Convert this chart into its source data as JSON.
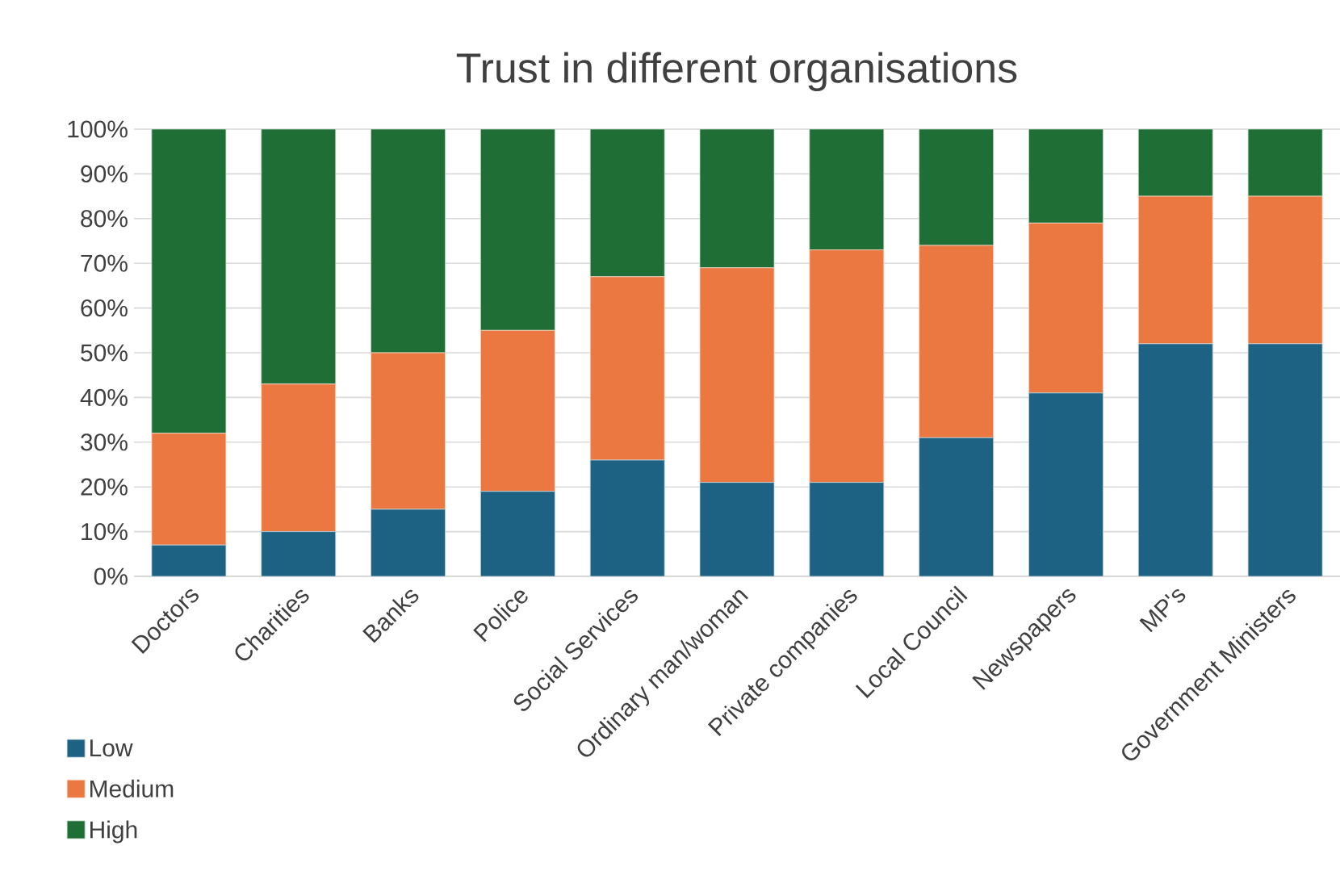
{
  "chart_data": {
    "type": "bar",
    "stacked": true,
    "title": "Trust in different organisations",
    "categories": [
      "Doctors",
      "Charities",
      "Banks",
      "Police",
      "Social Services",
      "Ordinary man/woman",
      "Private companies",
      "Local Council",
      "Newspapers",
      "MP's",
      "Government Ministers"
    ],
    "series": [
      {
        "name": "Low",
        "color": "#1d6282",
        "values": [
          7,
          10,
          15,
          19,
          26,
          21,
          21,
          31,
          41,
          52,
          52
        ]
      },
      {
        "name": "Medium",
        "color": "#eb7840",
        "values": [
          25,
          33,
          35,
          36,
          41,
          48,
          52,
          43,
          38,
          33,
          33
        ]
      },
      {
        "name": "High",
        "color": "#1e6e36",
        "values": [
          68,
          57,
          50,
          45,
          33,
          31,
          27,
          26,
          21,
          15,
          15
        ]
      }
    ],
    "ylim": [
      0,
      100
    ],
    "yticks": [
      {
        "value": 0,
        "label": "0%"
      },
      {
        "value": 10,
        "label": "10%"
      },
      {
        "value": 20,
        "label": "20%"
      },
      {
        "value": 30,
        "label": "30%"
      },
      {
        "value": 40,
        "label": "40%"
      },
      {
        "value": 50,
        "label": "50%"
      },
      {
        "value": 60,
        "label": "60%"
      },
      {
        "value": 70,
        "label": "70%"
      },
      {
        "value": 80,
        "label": "80%"
      },
      {
        "value": 90,
        "label": "90%"
      },
      {
        "value": 100,
        "label": "100%"
      }
    ],
    "grid": "y",
    "legend": "bottom left"
  }
}
